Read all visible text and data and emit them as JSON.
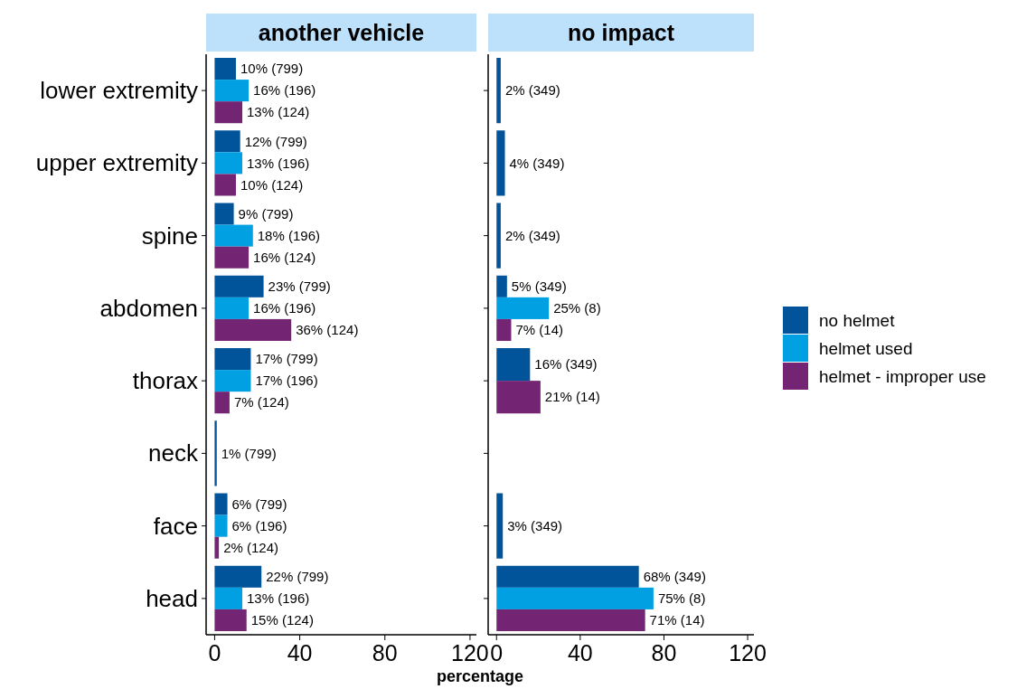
{
  "chart_data": [
    {
      "type": "bar",
      "orientation": "horizontal",
      "title": "another vehicle",
      "xlabel": "percentage",
      "categories": [
        "lower extremity",
        "upper extremity",
        "spine",
        "abdomen",
        "thorax",
        "neck",
        "face",
        "head"
      ],
      "xlim": [
        -4,
        123
      ],
      "xticks": [
        0,
        40,
        80,
        120
      ],
      "legend": false,
      "series": [
        {
          "color": "#02549a",
          "values": [
            10,
            12,
            9,
            23,
            17,
            1,
            6,
            22
          ],
          "value_labels": [
            "10% (799)",
            "12% (799)",
            "9% (799)",
            "23% (799)",
            "17% (799)",
            "1% (799)",
            "6% (799)",
            "22% (799)"
          ]
        },
        {
          "color": "#00a0e3",
          "values": [
            16,
            13,
            18,
            16,
            17,
            null,
            6,
            13
          ],
          "value_labels": [
            "16% (196)",
            "13% (196)",
            "18% (196)",
            "16% (196)",
            "17% (196)",
            null,
            "6% (196)",
            "13% (196)"
          ]
        },
        {
          "color": "#732473",
          "values": [
            13,
            10,
            16,
            36,
            7,
            null,
            2,
            15
          ],
          "value_labels": [
            "13% (124)",
            "10% (124)",
            "16% (124)",
            "36% (124)",
            "7% (124)",
            null,
            "2% (124)",
            "15% (124)"
          ]
        }
      ]
    },
    {
      "type": "bar",
      "orientation": "horizontal",
      "title": "no impact",
      "categories": [
        null,
        null,
        null,
        null,
        null,
        null,
        null,
        null
      ],
      "xlim": [
        -4,
        123
      ],
      "xticks": [
        0,
        40,
        80,
        120
      ],
      "tick_labels": "x",
      "legend": "right",
      "series": [
        {
          "name": "no helmet",
          "color": "#02549a",
          "values": [
            2,
            4,
            2,
            5,
            16,
            null,
            3,
            68
          ],
          "value_labels": [
            "2% (349)",
            "4% (349)",
            "2% (349)",
            "5% (349)",
            "16% (349)",
            null,
            "3% (349)",
            "68% (349)"
          ]
        },
        {
          "name": "helmet used",
          "color": "#00a0e3",
          "values": [
            null,
            null,
            null,
            25,
            null,
            null,
            null,
            75
          ],
          "value_labels": [
            null,
            null,
            null,
            "25% (8)",
            null,
            null,
            null,
            "75% (8)"
          ]
        },
        {
          "name": "helmet - improper use",
          "color": "#732473",
          "values": [
            null,
            null,
            null,
            7,
            21,
            null,
            null,
            71
          ],
          "value_labels": [
            null,
            null,
            null,
            "7% (14)",
            "21% (14)",
            null,
            null,
            "71% (14)"
          ]
        }
      ]
    }
  ]
}
